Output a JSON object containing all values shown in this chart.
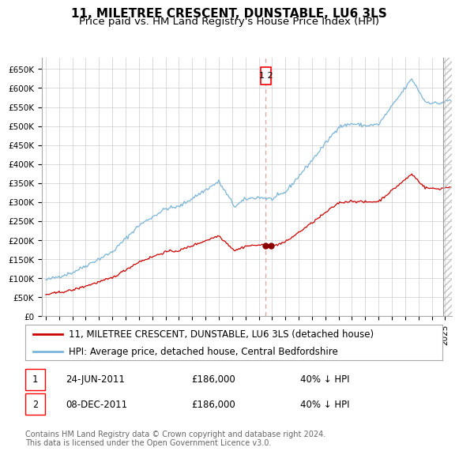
{
  "title": "11, MILETREE CRESCENT, DUNSTABLE, LU6 3LS",
  "subtitle": "Price paid vs. HM Land Registry's House Price Index (HPI)",
  "ylim": [
    0,
    680000
  ],
  "yticks": [
    0,
    50000,
    100000,
    150000,
    200000,
    250000,
    300000,
    350000,
    400000,
    450000,
    500000,
    550000,
    600000,
    650000
  ],
  "ytick_labels": [
    "£0",
    "£50K",
    "£100K",
    "£150K",
    "£200K",
    "£250K",
    "£300K",
    "£350K",
    "£400K",
    "£450K",
    "£500K",
    "£550K",
    "£600K",
    "£650K"
  ],
  "hpi_color": "#7ab4d8",
  "price_color": "#cc0000",
  "dot_color": "#8b0000",
  "vline_color": "#ddaaaa",
  "transaction_dates": [
    2011.48,
    2011.93
  ],
  "transaction_price": 186000,
  "legend_label_red": "11, MILETREE CRESCENT, DUNSTABLE, LU6 3LS (detached house)",
  "legend_label_blue": "HPI: Average price, detached house, Central Bedfordshire",
  "table_rows": [
    {
      "num": "1",
      "date": "24-JUN-2011",
      "price": "£186,000",
      "hpi": "40% ↓ HPI"
    },
    {
      "num": "2",
      "date": "08-DEC-2011",
      "price": "£186,000",
      "hpi": "40% ↓ HPI"
    }
  ],
  "footnote": "Contains HM Land Registry data © Crown copyright and database right 2024.\nThis data is licensed under the Open Government Licence v3.0.",
  "bg_color": "#ffffff",
  "grid_color": "#cccccc",
  "title_fontsize": 11,
  "subtitle_fontsize": 9.5,
  "tick_fontsize": 7.5,
  "legend_fontsize": 8.5,
  "table_fontsize": 8.5,
  "footnote_fontsize": 7,
  "xlim_left": 1994.7,
  "xlim_right": 2025.5,
  "hatch_start": 2024.83
}
